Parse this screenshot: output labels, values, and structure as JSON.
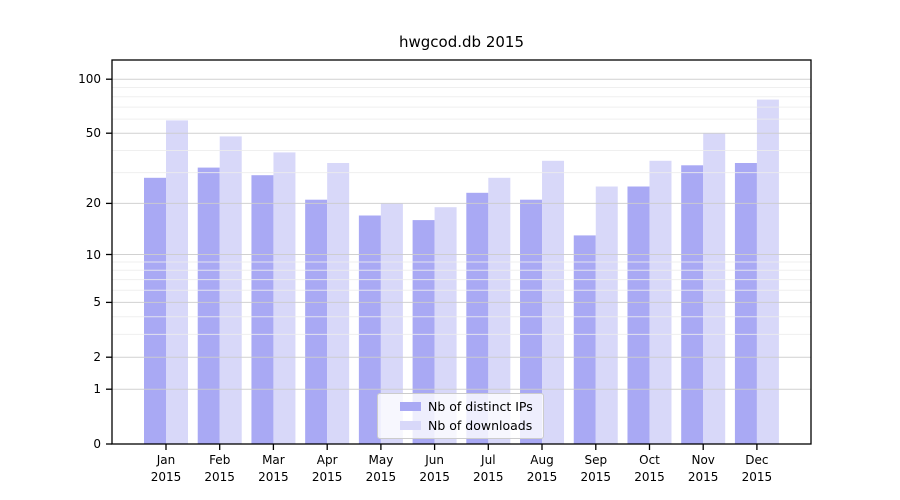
{
  "chart_data": {
    "type": "bar",
    "title": "hwgcod.db 2015",
    "categories": [
      "Jan",
      "Feb",
      "Mar",
      "Apr",
      "May",
      "Jun",
      "Jul",
      "Aug",
      "Sep",
      "Oct",
      "Nov",
      "Dec"
    ],
    "category_year": "2015",
    "series": [
      {
        "name": "Nb of distinct IPs",
        "color": "#a9a9f4",
        "values": [
          28,
          32,
          29,
          21,
          17,
          16,
          23,
          21,
          13,
          25,
          33,
          34
        ]
      },
      {
        "name": "Nb of downloads",
        "color": "#d8d8f9",
        "values": [
          59,
          48,
          39,
          34,
          20,
          19,
          28,
          35,
          25,
          35,
          50,
          77
        ]
      }
    ],
    "yscale": "log1p",
    "yticks_major": [
      0,
      1,
      2,
      5,
      10,
      20,
      50,
      100
    ],
    "yticks_minor": [
      3,
      4,
      6,
      7,
      8,
      9,
      30,
      40,
      60,
      70,
      80,
      90
    ],
    "ylim": [
      0,
      128
    ],
    "grid": true,
    "legend_position": "lower-center",
    "colors": {
      "major_grid": "#cccccc",
      "minor_grid": "#ececec",
      "axis": "#000000",
      "background": "#ffffff"
    }
  }
}
